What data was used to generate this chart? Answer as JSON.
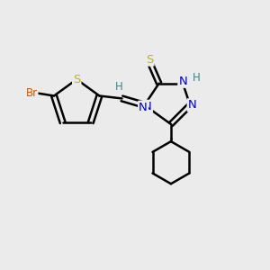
{
  "bg_color": "#ebebeb",
  "bond_color": "#000000",
  "atom_colors": {
    "Br": "#cc5500",
    "S": "#bbbb00",
    "N": "#0000cc",
    "H": "#338888",
    "C": "#000000"
  },
  "figsize": [
    3.0,
    3.0
  ],
  "dpi": 100,
  "xlim": [
    0,
    10
  ],
  "ylim": [
    0,
    10
  ]
}
